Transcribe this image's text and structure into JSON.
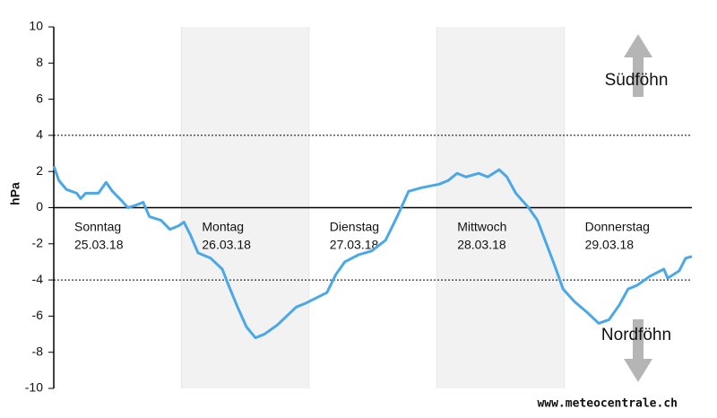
{
  "chart_data": {
    "type": "line",
    "y_label": "hPa",
    "watermark": "www.meteocentrale.ch",
    "days": [
      {
        "name": "Sonntag",
        "date": "25.03.18"
      },
      {
        "name": "Montag",
        "date": "26.03.18"
      },
      {
        "name": "Dienstag",
        "date": "27.03.18"
      },
      {
        "name": "Mittwoch",
        "date": "28.03.18"
      },
      {
        "name": "Donnerstag",
        "date": "29.03.18"
      }
    ],
    "annotations": [
      "Südföhn",
      "Nordföhn"
    ],
    "reference_lines": [
      4,
      -4
    ],
    "series": [
      {
        "color": "#4aa8e8",
        "x": [
          0,
          0.04,
          0.1,
          0.18,
          0.21,
          0.25,
          0.35,
          0.41,
          0.46,
          0.53,
          0.58,
          0.63,
          0.7,
          0.75,
          0.84,
          0.91,
          0.98,
          1.02,
          1.07,
          1.13,
          1.23,
          1.32,
          1.37,
          1.44,
          1.51,
          1.58,
          1.65,
          1.75,
          1.9,
          1.97,
          2.14,
          2.21,
          2.28,
          2.39,
          2.49,
          2.6,
          2.69,
          2.78,
          2.88,
          3.02,
          3.09,
          3.16,
          3.23,
          3.33,
          3.4,
          3.49,
          3.55,
          3.62,
          3.72,
          3.79,
          3.86,
          3.93,
          3.99,
          4.08,
          4.18,
          4.27,
          4.35,
          4.43,
          4.5,
          4.57,
          4.67,
          4.78,
          4.81,
          4.9,
          4.95,
          5.0
        ],
        "values": [
          2.3,
          1.5,
          1.0,
          0.8,
          0.5,
          0.8,
          0.8,
          1.4,
          0.9,
          0.4,
          0,
          0.1,
          0.3,
          -0.5,
          -0.7,
          -1.2,
          -1.0,
          -0.8,
          -1.5,
          -2.5,
          -2.8,
          -3.4,
          -4.3,
          -5.5,
          -6.6,
          -7.2,
          -7.0,
          -6.5,
          -5.5,
          -5.3,
          -4.7,
          -3.7,
          -3.0,
          -2.6,
          -2.4,
          -1.8,
          -0.5,
          0.9,
          1.1,
          1.3,
          1.5,
          1.9,
          1.7,
          1.9,
          1.7,
          2.1,
          1.7,
          0.8,
          0.0,
          -0.7,
          -2.0,
          -3.3,
          -4.5,
          -5.2,
          -5.8,
          -6.4,
          -6.2,
          -5.4,
          -4.5,
          -4.3,
          -3.8,
          -3.4,
          -3.9,
          -3.5,
          -2.8,
          -2.7
        ]
      }
    ],
    "xlim": [
      0,
      5
    ],
    "ylim": [
      -10,
      10
    ],
    "yticks": [
      -10,
      -8,
      -6,
      -4,
      -2,
      0,
      2,
      4,
      6,
      8,
      10
    ],
    "shaded_days": [
      1,
      3
    ]
  }
}
